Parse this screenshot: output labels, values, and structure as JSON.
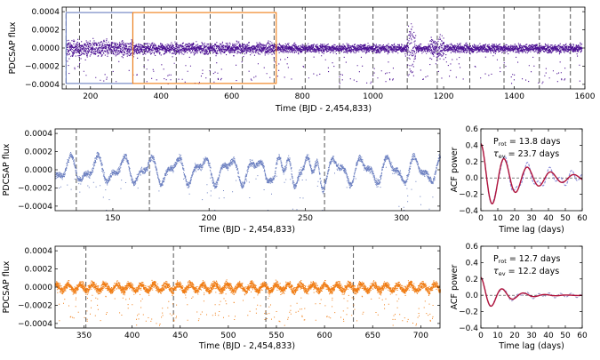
{
  "colors": {
    "full": "#4b0f92",
    "segment_a": "#6b7fc0",
    "segment_b": "#f07c13",
    "acf_a": "#8a8ad8",
    "acf_b": "#9c90c8",
    "acf_fit": "#b0123a",
    "divider": "#555555"
  },
  "chart_data": [
    {
      "id": "full",
      "type": "scatter",
      "xlabel": "Time (BJD - 2,454,833)",
      "ylabel": "PDCSAP flux",
      "xlim": [
        120,
        1600
      ],
      "ylim": [
        -0.00045,
        0.00045
      ],
      "xticks": [
        200,
        400,
        600,
        800,
        1000,
        1200,
        1400,
        1600
      ],
      "yticks": [
        -0.0004,
        -0.0002,
        0.0,
        0.0002,
        0.0004
      ],
      "ytick_labels": [
        "−0.0004",
        "−0.0002",
        "0.0000",
        "0.0002",
        "0.0004"
      ],
      "quarter_boundaries": [
        131,
        169,
        260,
        352,
        443,
        539,
        630,
        720,
        808,
        905,
        1000,
        1097,
        1182,
        1274,
        1371,
        1471,
        1559
      ],
      "highlight_boxes": [
        {
          "x": [
            131,
            320
          ],
          "y": [
            -0.00039,
            0.00039
          ],
          "color": "#6b7fc0"
        },
        {
          "x": [
            320,
            726
          ],
          "y": [
            -0.00039,
            0.00039
          ],
          "color": "#f07c13"
        }
      ],
      "data_range": [
        131,
        1591
      ]
    },
    {
      "id": "segment_a",
      "type": "scatter",
      "xlabel": "Time (BJD - 2,454,833)",
      "ylabel": "PDCSAP flux",
      "xlim": [
        120,
        320
      ],
      "ylim": [
        -0.00045,
        0.00045
      ],
      "xticks": [
        150,
        200,
        250,
        300
      ],
      "yticks": [
        -0.0004,
        -0.0002,
        0.0,
        0.0002,
        0.0004
      ],
      "ytick_labels": [
        "−0.0004",
        "−0.0002",
        "0.0000",
        "0.0002",
        "0.0004"
      ],
      "quarter_boundaries": [
        131,
        169,
        260
      ],
      "data_range": [
        120,
        320
      ]
    },
    {
      "id": "acf_a",
      "type": "line",
      "xlabel": "Time lag (days)",
      "ylabel": "ACF power",
      "xlim": [
        0,
        60
      ],
      "ylim": [
        -0.4,
        0.6
      ],
      "xticks": [
        0,
        10,
        20,
        30,
        40,
        50,
        60
      ],
      "yticks": [
        -0.4,
        -0.2,
        0.0,
        0.2,
        0.4,
        0.6
      ],
      "ytick_labels": [
        "−0.4",
        "−0.2",
        "0.0",
        "0.2",
        "0.4",
        "0.6"
      ],
      "period_days": 13.8,
      "decay_days": 23.7,
      "prot_label": "P",
      "prot_sub": "rot",
      "prot_value": " = 13.8 days",
      "tau_label": "τ",
      "tau_sub": "ev",
      "tau_value": " = 23.7 days"
    },
    {
      "id": "segment_b",
      "type": "scatter",
      "xlabel": "Time (BJD - 2,454,833)",
      "ylabel": "PDCSAP flux",
      "xlim": [
        320,
        720
      ],
      "ylim": [
        -0.00045,
        0.00045
      ],
      "xticks": [
        350,
        400,
        450,
        500,
        550,
        600,
        650,
        700
      ],
      "yticks": [
        -0.0004,
        -0.0002,
        0.0,
        0.0002,
        0.0004
      ],
      "ytick_labels": [
        "−0.0004",
        "−0.0002",
        "0.0000",
        "0.0002",
        "0.0004"
      ],
      "quarter_boundaries": [
        352,
        443,
        539,
        630
      ],
      "data_range": [
        320,
        720
      ]
    },
    {
      "id": "acf_b",
      "type": "line",
      "xlabel": "Time lag (days)",
      "ylabel": "ACF power",
      "xlim": [
        0,
        60
      ],
      "ylim": [
        -0.4,
        0.6
      ],
      "xticks": [
        0,
        10,
        20,
        30,
        40,
        50,
        60
      ],
      "yticks": [
        -0.4,
        -0.2,
        0.0,
        0.2,
        0.4,
        0.6
      ],
      "ytick_labels": [
        "−0.4",
        "−0.2",
        "0.0",
        "0.2",
        "0.4",
        "0.6"
      ],
      "period_days": 12.7,
      "decay_days": 12.2,
      "prot_label": "P",
      "prot_sub": "rot",
      "prot_value": " = 12.7 days",
      "tau_label": "τ",
      "tau_sub": "ev",
      "tau_value": " = 12.2 days"
    }
  ]
}
